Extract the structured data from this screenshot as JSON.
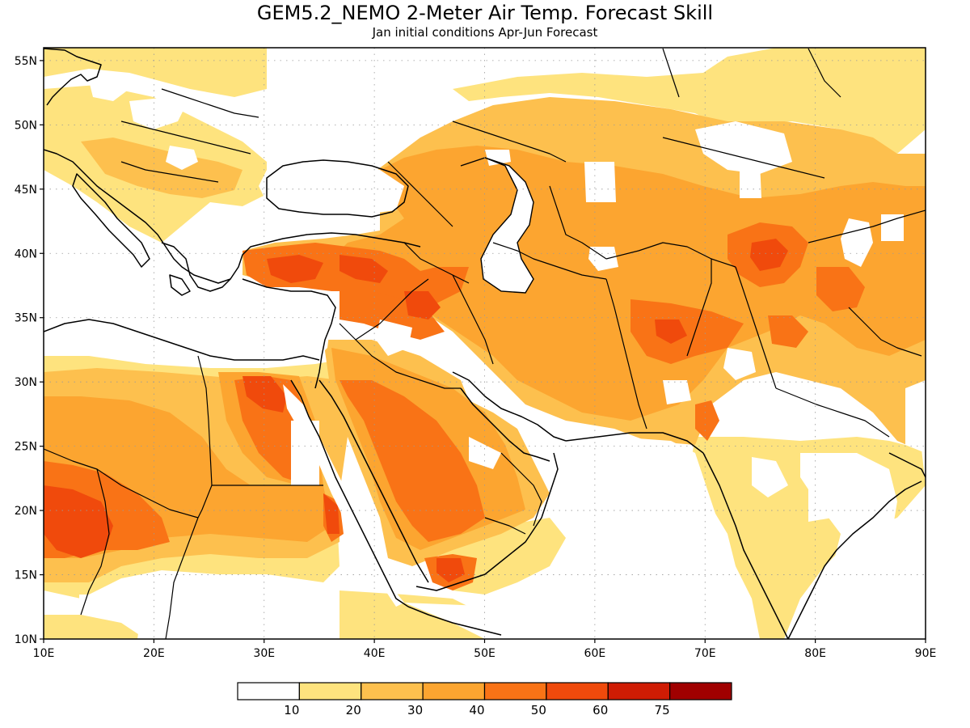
{
  "title": "GEM5.2_NEMO 2-Meter Air Temp. Forecast Skill",
  "subtitle": "Jan initial conditions  Apr-Jun Forecast",
  "map": {
    "lon_range": [
      10,
      90
    ],
    "lat_range": [
      10,
      56
    ],
    "lon_ticks": [
      "10E",
      "20E",
      "30E",
      "40E",
      "50E",
      "60E",
      "70E",
      "80E",
      "90E"
    ],
    "lat_ticks": [
      "10N",
      "15N",
      "20N",
      "25N",
      "30N",
      "35N",
      "40N",
      "45N",
      "50N",
      "55N"
    ],
    "gridlines": "dotted"
  },
  "legend": {
    "bins": [
      {
        "color": "#ffffff"
      },
      {
        "color": "#fee37e"
      },
      {
        "color": "#fdc04e"
      },
      {
        "color": "#fca530"
      },
      {
        "color": "#f97316"
      },
      {
        "color": "#f04a0c"
      },
      {
        "color": "#cf1c04"
      },
      {
        "color": "#a00000"
      }
    ],
    "labels": [
      "10",
      "20",
      "30",
      "40",
      "50",
      "60",
      "75"
    ]
  }
}
